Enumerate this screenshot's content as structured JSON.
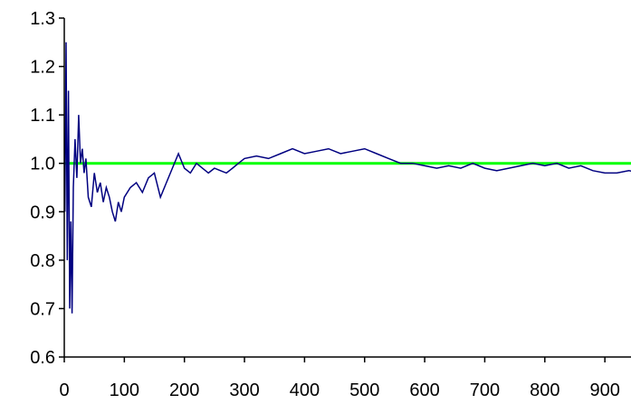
{
  "chart_data": {
    "type": "line",
    "title": "",
    "xlabel": "",
    "ylabel": "",
    "xlim": [
      0,
      980
    ],
    "ylim": [
      0.6,
      1.3
    ],
    "x_ticks": [
      "0",
      "100",
      "200",
      "300",
      "400",
      "500",
      "600",
      "700",
      "800",
      "900"
    ],
    "y_ticks": [
      "0.6",
      "0.7",
      "0.8",
      "0.9",
      "1.0",
      "1.1",
      "1.2",
      "1.3"
    ],
    "grid": false,
    "legend": "none",
    "reference_line": {
      "y": 1.0,
      "color": "#00ff00"
    },
    "series": [
      {
        "color": "#000080",
        "x": [
          1,
          3,
          5,
          7,
          9,
          11,
          13,
          15,
          18,
          21,
          24,
          27,
          30,
          33,
          36,
          40,
          45,
          50,
          55,
          60,
          65,
          70,
          75,
          80,
          85,
          90,
          95,
          100,
          110,
          120,
          130,
          140,
          150,
          160,
          170,
          180,
          190,
          200,
          210,
          220,
          230,
          240,
          250,
          260,
          270,
          280,
          290,
          300,
          320,
          340,
          360,
          380,
          400,
          420,
          440,
          460,
          480,
          500,
          520,
          540,
          560,
          580,
          600,
          620,
          640,
          660,
          680,
          700,
          720,
          740,
          760,
          780,
          800,
          820,
          840,
          860,
          880,
          900,
          920,
          940,
          960,
          980
        ],
        "y": [
          0.9,
          1.25,
          0.8,
          1.15,
          0.7,
          0.88,
          0.69,
          0.95,
          1.05,
          0.97,
          1.1,
          1.0,
          1.03,
          0.98,
          1.01,
          0.93,
          0.91,
          0.98,
          0.94,
          0.96,
          0.92,
          0.95,
          0.93,
          0.9,
          0.88,
          0.92,
          0.9,
          0.93,
          0.95,
          0.96,
          0.94,
          0.97,
          0.98,
          0.93,
          0.96,
          0.99,
          1.02,
          0.99,
          0.98,
          1.0,
          0.99,
          0.98,
          0.99,
          0.985,
          0.98,
          0.99,
          1.0,
          1.01,
          1.015,
          1.01,
          1.02,
          1.03,
          1.02,
          1.025,
          1.03,
          1.02,
          1.025,
          1.03,
          1.02,
          1.01,
          1.0,
          1.0,
          0.995,
          0.99,
          0.995,
          0.99,
          1.0,
          0.99,
          0.985,
          0.99,
          0.995,
          1.0,
          0.995,
          1.0,
          0.99,
          0.995,
          0.985,
          0.98,
          0.98,
          0.985,
          0.98,
          0.985
        ]
      }
    ]
  }
}
